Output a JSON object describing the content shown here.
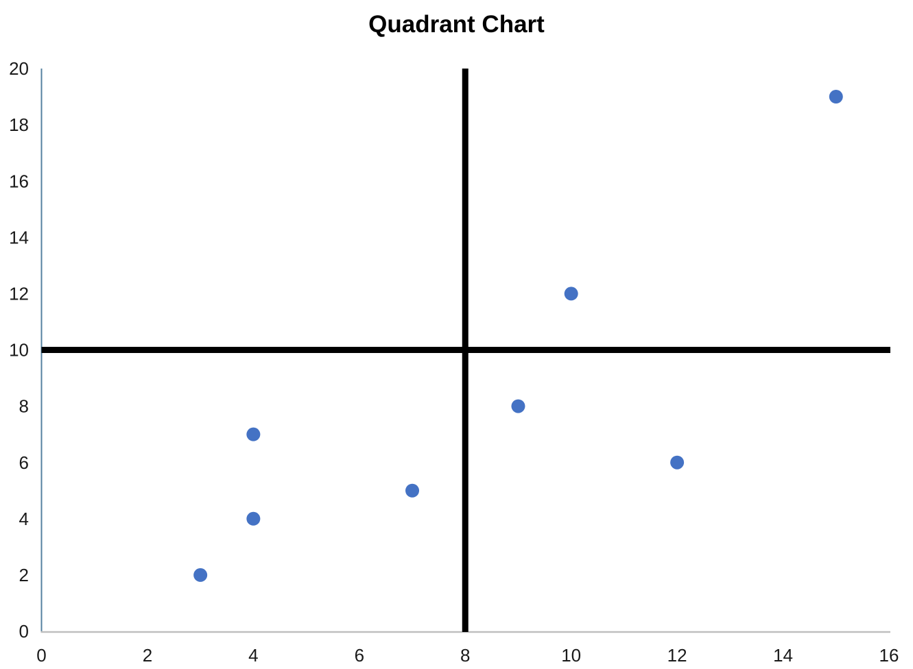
{
  "chart_data": {
    "type": "scatter",
    "title": "Quadrant Chart",
    "xlabel": "",
    "ylabel": "",
    "xlim": [
      0,
      16
    ],
    "ylim": [
      0,
      20
    ],
    "x_ticks": [
      0,
      2,
      4,
      6,
      8,
      10,
      12,
      14,
      16
    ],
    "y_ticks": [
      0,
      2,
      4,
      6,
      8,
      10,
      12,
      14,
      16,
      18,
      20
    ],
    "points": [
      {
        "x": 3,
        "y": 2
      },
      {
        "x": 4,
        "y": 4
      },
      {
        "x": 4,
        "y": 7
      },
      {
        "x": 7,
        "y": 5
      },
      {
        "x": 9,
        "y": 8
      },
      {
        "x": 10,
        "y": 12
      },
      {
        "x": 12,
        "y": 6
      },
      {
        "x": 15,
        "y": 19
      }
    ],
    "quadrant_lines": {
      "x": 8,
      "y": 10
    },
    "grid": false,
    "legend": false,
    "colors": {
      "point_fill": "#4472C4",
      "quadrant_line": "#000000",
      "y_axis_line": "#54809F",
      "x_axis_line": "#BFBFBF",
      "tick_label": "#1A1A1A",
      "title": "#000000",
      "background": "#FFFFFF"
    }
  }
}
